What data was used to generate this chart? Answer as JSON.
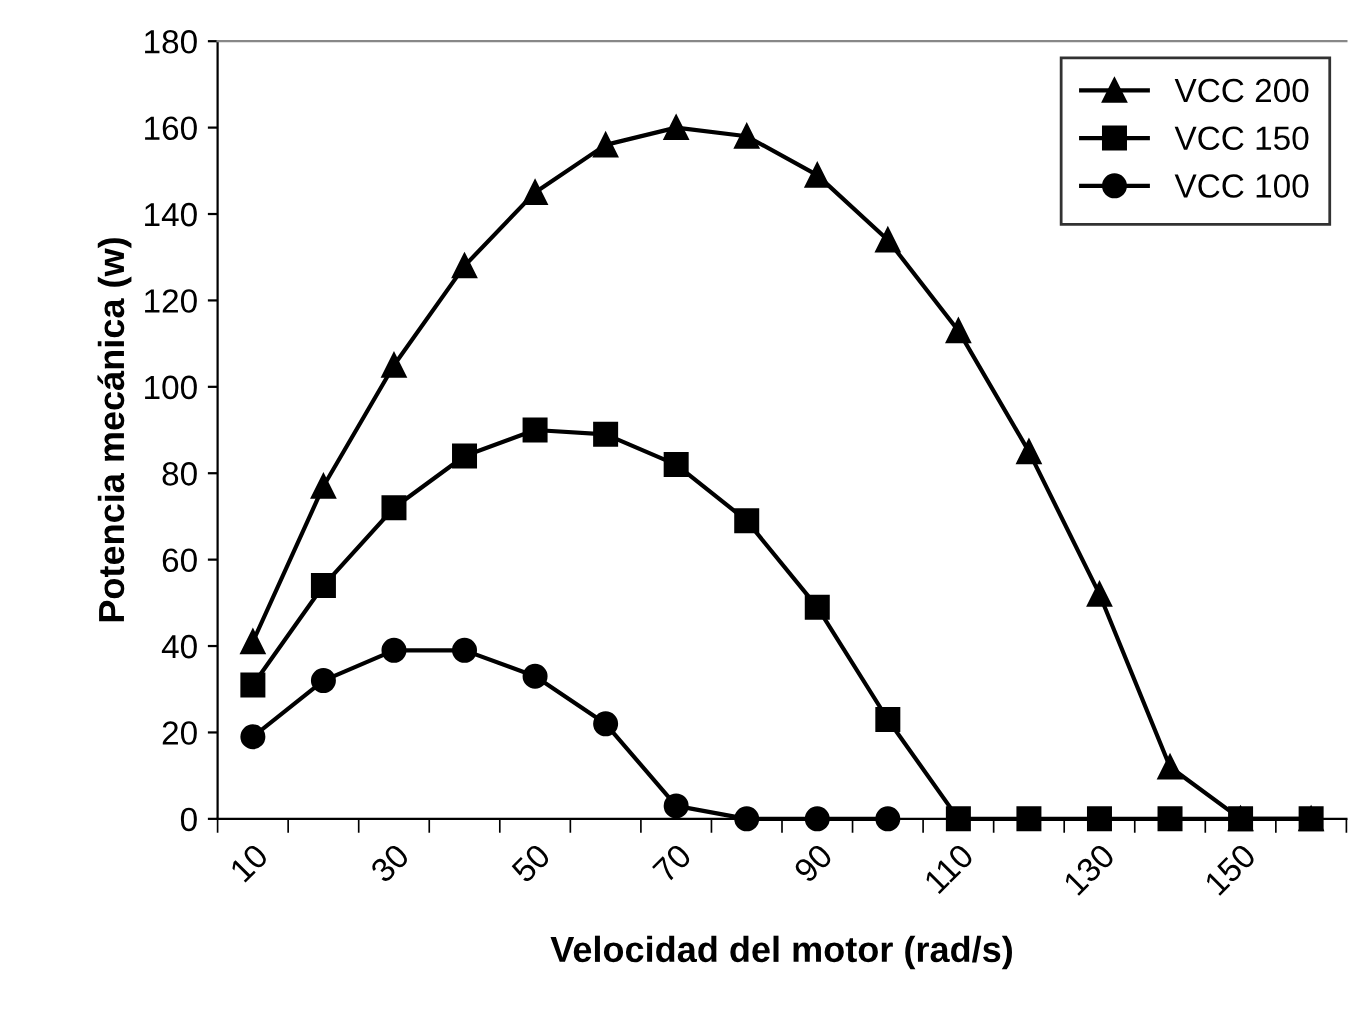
{
  "chart_data": {
    "type": "line",
    "xlabel": "Velocidad del motor (rad/s)",
    "ylabel": "Potencia mecánica (w)",
    "categories": [
      "10",
      null,
      "30",
      null,
      "50",
      null,
      "70",
      null,
      "90",
      null,
      "110",
      null,
      "130",
      null,
      "150",
      null
    ],
    "series": [
      {
        "name": "VCC 200",
        "color": "#000000",
        "marker": "triangle",
        "values": [
          41,
          77,
          105,
          128,
          145,
          156,
          160,
          158,
          149,
          134,
          113,
          85,
          52,
          12,
          0,
          0
        ]
      },
      {
        "name": "VCC 150",
        "color": "#000000",
        "marker": "square",
        "values": [
          31,
          54,
          72,
          84,
          90,
          89,
          82,
          69,
          49,
          23,
          0,
          0,
          0,
          0,
          0,
          0
        ]
      },
      {
        "name": "VCC 100",
        "color": "#000000",
        "marker": "circle",
        "values": [
          19,
          32,
          39,
          39,
          33,
          22,
          3,
          0,
          0,
          0,
          null,
          null,
          null,
          null,
          null,
          null
        ]
      }
    ],
    "ylim": [
      0,
      180
    ],
    "yticks": [
      0,
      20,
      40,
      60,
      80,
      100,
      120,
      140,
      160,
      180
    ],
    "grid": false,
    "legend": "top right",
    "line_style": "solid"
  }
}
